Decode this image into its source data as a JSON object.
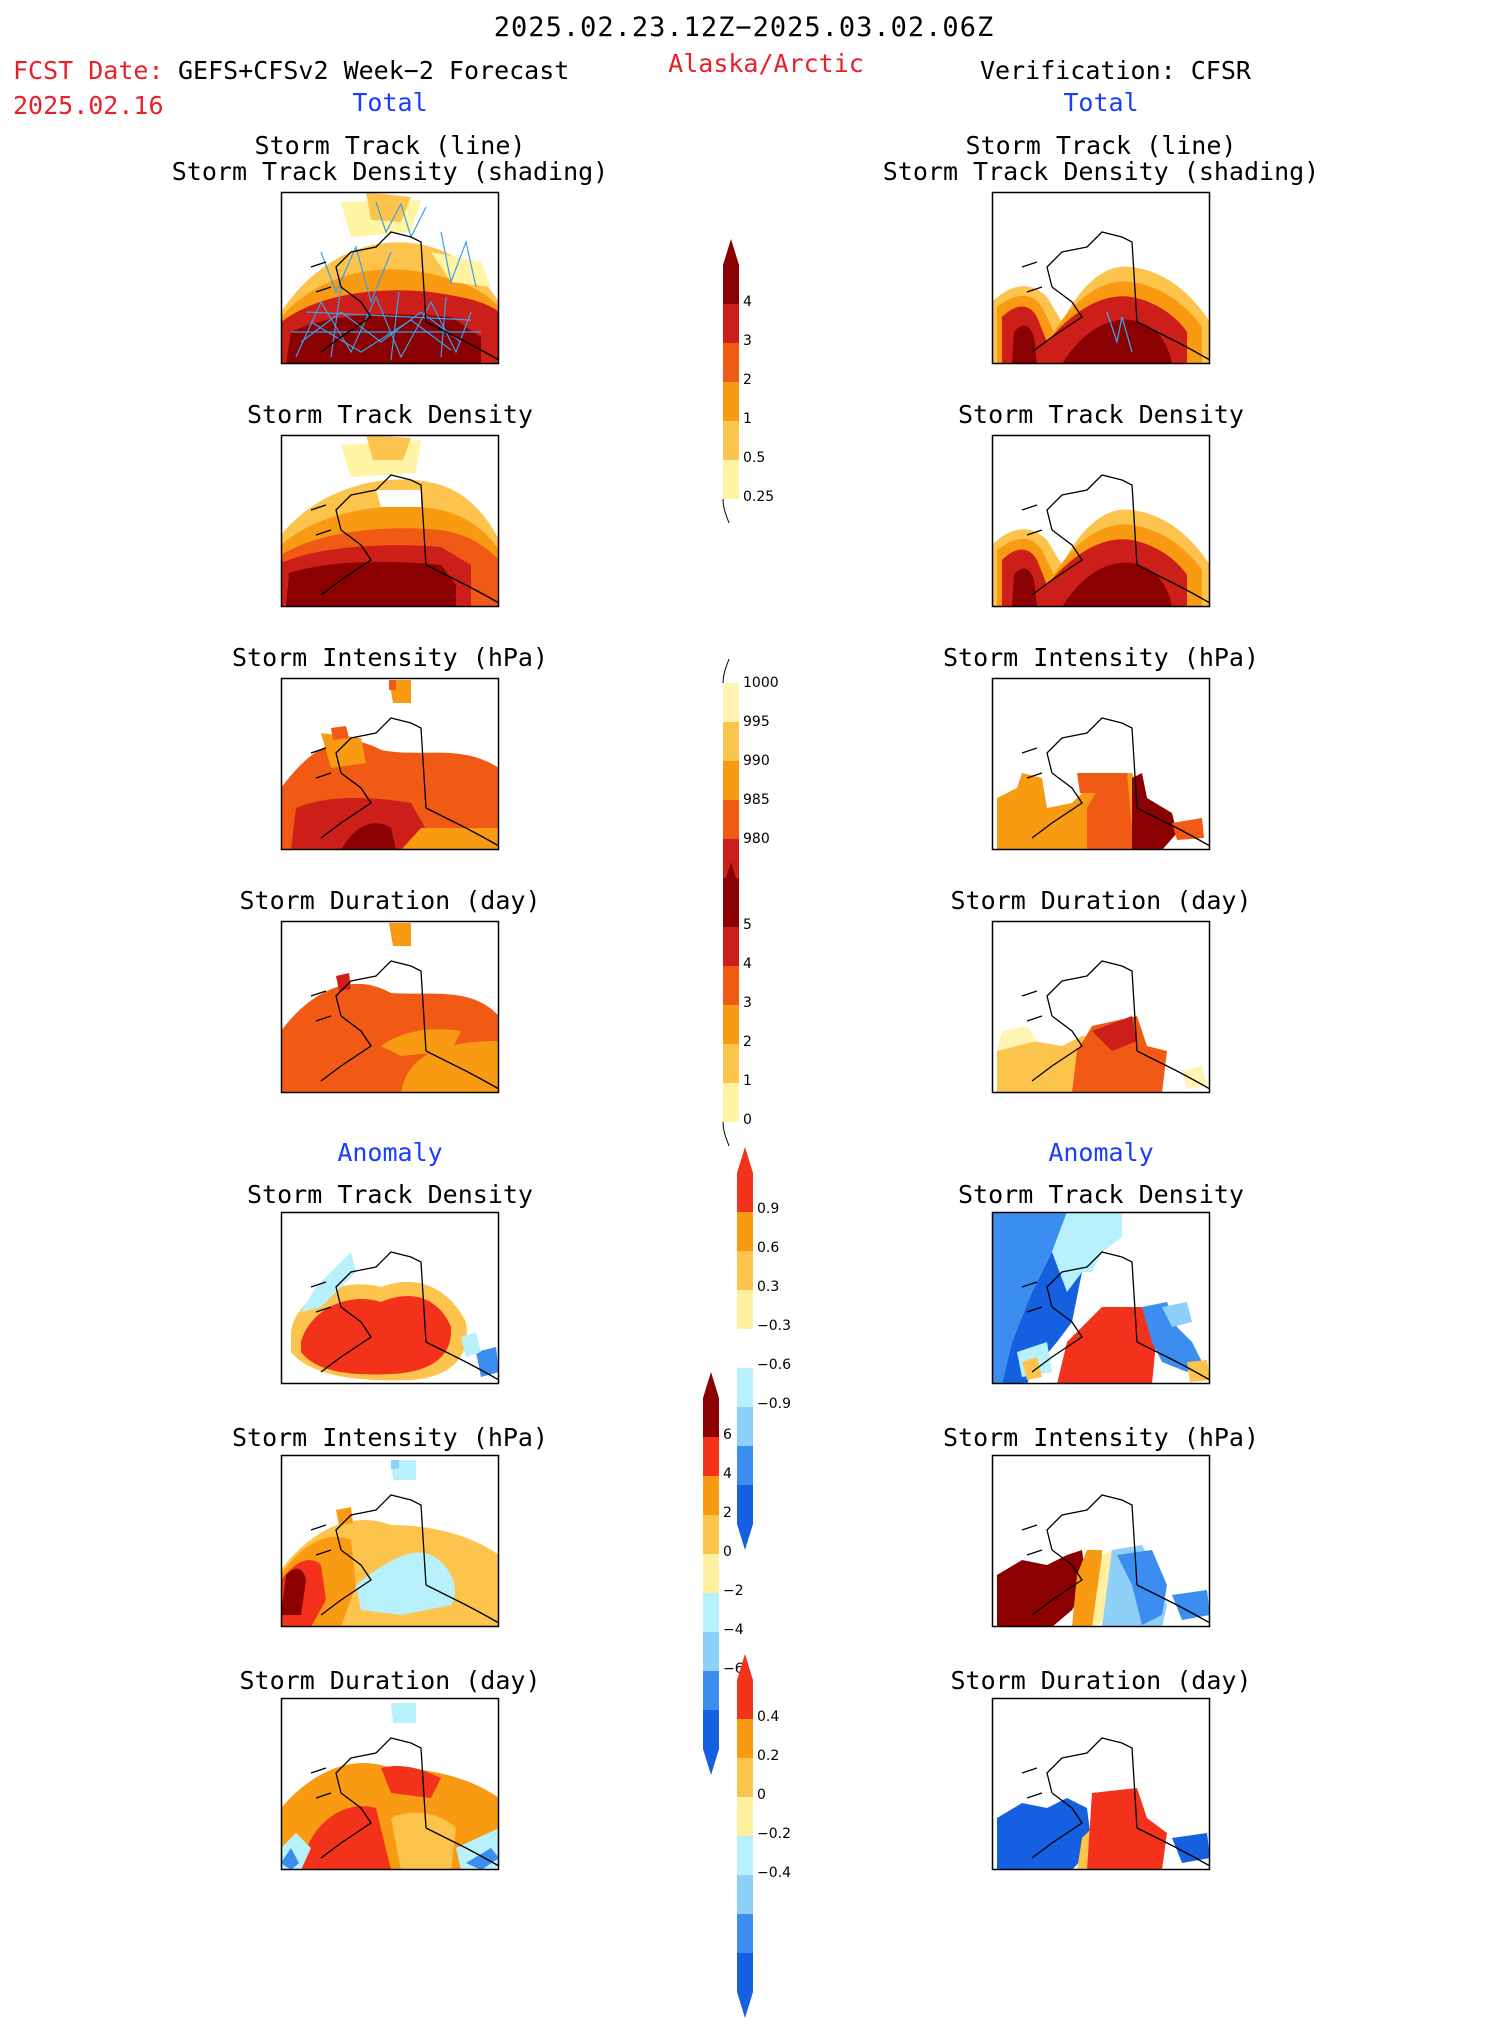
{
  "header": {
    "date_range": "2025.02.23.12Z−2025.03.02.06Z",
    "fcst_label": "FCST Date:",
    "fcst_model": "GEFS+CFSv2 Week−2 Forecast",
    "fcst_date": "2025.02.16",
    "region": "Alaska/Arctic",
    "verification": "Verification: CFSR"
  },
  "sections": {
    "total": "Total",
    "anomaly": "Anomaly"
  },
  "panel_titles": {
    "track_line": "Storm Track (line)",
    "track_shading": "Storm Track Density (shading)",
    "density": "Storm Track Density",
    "intensity": "Storm Intensity (hPa)",
    "duration": "Storm Duration (day)"
  },
  "colorbars": {
    "density_total": {
      "ticks": [
        "4",
        "3",
        "2",
        "1",
        "0.5",
        "0.25"
      ],
      "colors": [
        "#8b0000",
        "#cc1f1a",
        "#f05a14",
        "#f99a13",
        "#fcc44d",
        "#fff4a3"
      ]
    },
    "intensity_total": {
      "ticks": [
        "1000",
        "995",
        "990",
        "985",
        "980"
      ],
      "colors": [
        "#fff4b3",
        "#fcc44d",
        "#f99a13",
        "#f05a14",
        "#cc1f1a",
        "#8b0000"
      ]
    },
    "duration_total": {
      "ticks": [
        "5",
        "4",
        "3",
        "2",
        "1",
        "0"
      ],
      "colors": [
        "#8b0000",
        "#cc1f1a",
        "#f05a14",
        "#f99a13",
        "#fcc44d",
        "#fff4a3"
      ]
    },
    "density_anom": {
      "ticks": [
        "0.9",
        "0.6",
        "0.3",
        "−0.3",
        "−0.6",
        "−0.9"
      ],
      "colors": [
        "#f3321c",
        "#f99a13",
        "#fcc44d",
        "#fff0a0",
        "#ffffff",
        "#b8f0fb",
        "#8ed0f7",
        "#3b8ef0",
        "#1560e0"
      ]
    },
    "intensity_anom": {
      "ticks": [
        "6",
        "4",
        "2",
        "0",
        "−2",
        "−4",
        "−6"
      ],
      "colors": [
        "#8b0000",
        "#f3321c",
        "#f99a13",
        "#fcc44d",
        "#fff0a0",
        "#b8f0fb",
        "#8ed0f7",
        "#3b8ef0",
        "#1560e0"
      ]
    },
    "duration_anom": {
      "ticks": [
        "0.4",
        "0.2",
        "0",
        "−0.2",
        "−0.4"
      ],
      "colors": [
        "#f3321c",
        "#f99a13",
        "#fcc44d",
        "#fff0a0",
        "#b8f0fb",
        "#8ed0f7",
        "#3b8ef0",
        "#1560e0"
      ]
    }
  }
}
